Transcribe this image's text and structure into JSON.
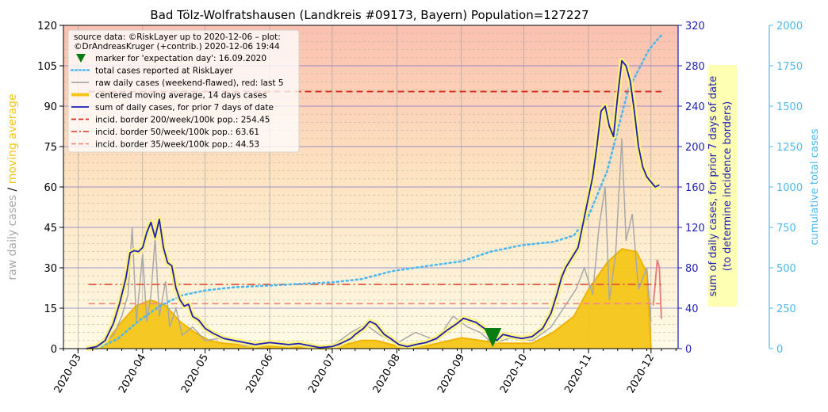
{
  "chart_data": {
    "type": "line",
    "title": "Bad Tölz-Wolfratshausen (Landkreis #09173, Bayern) Population=127227",
    "x_tick_labels": [
      "2020-03",
      "2020-04",
      "2020-05",
      "2020-06",
      "2020-07",
      "2020-08",
      "2020-09",
      "2020-10",
      "2020-11",
      "2020-12"
    ],
    "x_range": [
      "2020-02-23",
      "2020-12-14"
    ],
    "y_left": {
      "label_parts": [
        "raw daily cases",
        "/",
        "moving average"
      ],
      "range": [
        0,
        120
      ],
      "ticks": [
        "0",
        "15",
        "30",
        "45",
        "60",
        "75",
        "90",
        "105",
        "120"
      ]
    },
    "y_right1": {
      "label_lines": [
        "sum of daily cases, for prior 7 days of date",
        "(to determine incidence borders)"
      ],
      "range": [
        0,
        320
      ],
      "ticks": [
        "0",
        "40",
        "80",
        "120",
        "160",
        "200",
        "240",
        "280",
        "320"
      ]
    },
    "y_right2": {
      "label": "cumulative total cases",
      "range": [
        0,
        2000
      ],
      "ticks": [
        "0",
        "250",
        "500",
        "750",
        "1000",
        "1250",
        "1500",
        "1750",
        "2000"
      ]
    },
    "grid": true,
    "legend_position": "top-left",
    "legend": [
      {
        "kind": "text",
        "text": "source data: ©RiskLayer up to 2020-12-06 – plot:"
      },
      {
        "kind": "text",
        "text": "©DrAndreasKruger (+contrib.) 2020-12-06 19:44"
      },
      {
        "kind": "marker",
        "color": "#0a7d12",
        "text": "marker for 'expectation day': 16.09.2020"
      },
      {
        "kind": "dotted",
        "color": "#4db8f0",
        "text": "total cases reported at RiskLayer"
      },
      {
        "kind": "line",
        "color": "#a8a8a8",
        "text": "raw daily cases (weekend-flawed), red: last 5"
      },
      {
        "kind": "thick",
        "color": "#f5c518",
        "text": "centered moving average, 14 days cases"
      },
      {
        "kind": "line",
        "color": "#1f1fb4",
        "text": "sum of daily cases, for prior 7 days of date"
      },
      {
        "kind": "dashed",
        "color": "#d62d20",
        "text": "incid. border 200/week/100k pop.: 254.45"
      },
      {
        "kind": "dashdot",
        "color": "#e0523a",
        "text": "incid. border 50/week/100k pop.: 63.61"
      },
      {
        "kind": "dashed",
        "color": "#f08a80",
        "text": "incid. border 35/week/100k pop.: 44.53"
      }
    ],
    "expectation_day": "2020-09-16",
    "incidence_borders": [
      {
        "name": "200/week/100k",
        "value": 254.45,
        "color": "#d62d20",
        "from": "2020-03-06",
        "to": "2020-12-06"
      },
      {
        "name": "50/week/100k",
        "value": 63.61,
        "color": "#e0523a",
        "from": "2020-03-06",
        "to": "2020-12-06"
      },
      {
        "name": "35/week/100k",
        "value": 44.53,
        "color": "#f08a80",
        "from": "2020-03-06",
        "to": "2020-12-06"
      }
    ],
    "series": [
      {
        "name": "sum of daily cases, for prior 7 days of date",
        "axis": "y_right1",
        "color": "#1f1fb4",
        "points": [
          [
            "2020-03-05",
            0
          ],
          [
            "2020-03-10",
            2
          ],
          [
            "2020-03-14",
            8
          ],
          [
            "2020-03-18",
            25
          ],
          [
            "2020-03-21",
            45
          ],
          [
            "2020-03-24",
            70
          ],
          [
            "2020-03-26",
            95
          ],
          [
            "2020-03-28",
            97
          ],
          [
            "2020-03-30",
            96
          ],
          [
            "2020-04-01",
            100
          ],
          [
            "2020-04-03",
            115
          ],
          [
            "2020-04-05",
            125
          ],
          [
            "2020-04-07",
            110
          ],
          [
            "2020-04-09",
            128
          ],
          [
            "2020-04-11",
            100
          ],
          [
            "2020-04-13",
            85
          ],
          [
            "2020-04-15",
            82
          ],
          [
            "2020-04-17",
            60
          ],
          [
            "2020-04-19",
            48
          ],
          [
            "2020-04-21",
            42
          ],
          [
            "2020-04-23",
            44
          ],
          [
            "2020-04-25",
            32
          ],
          [
            "2020-04-28",
            28
          ],
          [
            "2020-05-01",
            20
          ],
          [
            "2020-05-05",
            15
          ],
          [
            "2020-05-10",
            10
          ],
          [
            "2020-05-15",
            8
          ],
          [
            "2020-05-20",
            6
          ],
          [
            "2020-05-25",
            4
          ],
          [
            "2020-06-01",
            6
          ],
          [
            "2020-06-10",
            4
          ],
          [
            "2020-06-15",
            5
          ],
          [
            "2020-06-20",
            3
          ],
          [
            "2020-06-25",
            1
          ],
          [
            "2020-07-01",
            2
          ],
          [
            "2020-07-05",
            5
          ],
          [
            "2020-07-10",
            10
          ],
          [
            "2020-07-12",
            14
          ],
          [
            "2020-07-16",
            20
          ],
          [
            "2020-07-19",
            27
          ],
          [
            "2020-07-22",
            24
          ],
          [
            "2020-07-26",
            14
          ],
          [
            "2020-07-29",
            10
          ],
          [
            "2020-08-02",
            4
          ],
          [
            "2020-08-06",
            2
          ],
          [
            "2020-08-10",
            4
          ],
          [
            "2020-08-15",
            6
          ],
          [
            "2020-08-20",
            10
          ],
          [
            "2020-08-25",
            18
          ],
          [
            "2020-08-30",
            25
          ],
          [
            "2020-09-02",
            30
          ],
          [
            "2020-09-05",
            28
          ],
          [
            "2020-09-08",
            26
          ],
          [
            "2020-09-12",
            20
          ],
          [
            "2020-09-16",
            12
          ],
          [
            "2020-09-18",
            8
          ],
          [
            "2020-09-21",
            14
          ],
          [
            "2020-09-25",
            12
          ],
          [
            "2020-09-30",
            10
          ],
          [
            "2020-10-05",
            12
          ],
          [
            "2020-10-10",
            20
          ],
          [
            "2020-10-14",
            35
          ],
          [
            "2020-10-17",
            55
          ],
          [
            "2020-10-19",
            70
          ],
          [
            "2020-10-21",
            80
          ],
          [
            "2020-10-24",
            90
          ],
          [
            "2020-10-27",
            100
          ],
          [
            "2020-10-29",
            120
          ],
          [
            "2020-11-01",
            150
          ],
          [
            "2020-11-03",
            170
          ],
          [
            "2020-11-05",
            200
          ],
          [
            "2020-11-07",
            235
          ],
          [
            "2020-11-09",
            240
          ],
          [
            "2020-11-11",
            220
          ],
          [
            "2020-11-13",
            210
          ],
          [
            "2020-11-15",
            250
          ],
          [
            "2020-11-17",
            285
          ],
          [
            "2020-11-19",
            280
          ],
          [
            "2020-11-21",
            265
          ],
          [
            "2020-11-23",
            235
          ],
          [
            "2020-11-25",
            200
          ],
          [
            "2020-11-27",
            180
          ],
          [
            "2020-11-29",
            170
          ],
          [
            "2020-12-01",
            165
          ],
          [
            "2020-12-03",
            160
          ],
          [
            "2020-12-05",
            162
          ]
        ]
      },
      {
        "name": "total cases reported at RiskLayer",
        "axis": "y_right2",
        "color": "#4db8f0",
        "points": [
          [
            "2020-03-10",
            0
          ],
          [
            "2020-03-20",
            60
          ],
          [
            "2020-03-30",
            170
          ],
          [
            "2020-04-10",
            270
          ],
          [
            "2020-04-20",
            330
          ],
          [
            "2020-05-01",
            360
          ],
          [
            "2020-05-15",
            380
          ],
          [
            "2020-06-01",
            390
          ],
          [
            "2020-06-15",
            400
          ],
          [
            "2020-07-01",
            410
          ],
          [
            "2020-07-15",
            430
          ],
          [
            "2020-07-30",
            480
          ],
          [
            "2020-08-15",
            510
          ],
          [
            "2020-09-01",
            540
          ],
          [
            "2020-09-15",
            600
          ],
          [
            "2020-09-30",
            640
          ],
          [
            "2020-10-15",
            660
          ],
          [
            "2020-10-25",
            700
          ],
          [
            "2020-11-01",
            820
          ],
          [
            "2020-11-10",
            1100
          ],
          [
            "2020-11-20",
            1600
          ],
          [
            "2020-11-30",
            1850
          ],
          [
            "2020-12-06",
            1940
          ]
        ]
      },
      {
        "name": "centered moving average, 14 days cases",
        "axis": "y_left",
        "color": "#f5c518",
        "points": [
          [
            "2020-03-08",
            0
          ],
          [
            "2020-03-15",
            3
          ],
          [
            "2020-03-22",
            10
          ],
          [
            "2020-03-29",
            16
          ],
          [
            "2020-04-05",
            18
          ],
          [
            "2020-04-12",
            16
          ],
          [
            "2020-04-19",
            10
          ],
          [
            "2020-04-26",
            6
          ],
          [
            "2020-05-03",
            3
          ],
          [
            "2020-05-10",
            2
          ],
          [
            "2020-05-24",
            1
          ],
          [
            "2020-06-15",
            0.5
          ],
          [
            "2020-07-05",
            1
          ],
          [
            "2020-07-15",
            3
          ],
          [
            "2020-07-22",
            3
          ],
          [
            "2020-08-01",
            1
          ],
          [
            "2020-08-15",
            1
          ],
          [
            "2020-09-01",
            4
          ],
          [
            "2020-09-10",
            3
          ],
          [
            "2020-09-20",
            2
          ],
          [
            "2020-10-05",
            2
          ],
          [
            "2020-10-15",
            6
          ],
          [
            "2020-10-25",
            12
          ],
          [
            "2020-11-01",
            22
          ],
          [
            "2020-11-10",
            32
          ],
          [
            "2020-11-17",
            37
          ],
          [
            "2020-11-24",
            36
          ],
          [
            "2020-11-29",
            28
          ],
          [
            "2020-12-01",
            0
          ]
        ]
      },
      {
        "name": "raw daily cases (weekend-flawed), red: last 5",
        "axis": "y_left",
        "color": "#a8a8a8",
        "points": [
          [
            "2020-03-10",
            0
          ],
          [
            "2020-03-18",
            5
          ],
          [
            "2020-03-22",
            12
          ],
          [
            "2020-03-25",
            20
          ],
          [
            "2020-03-27",
            45
          ],
          [
            "2020-03-29",
            10
          ],
          [
            "2020-04-01",
            35
          ],
          [
            "2020-04-03",
            10
          ],
          [
            "2020-04-05",
            20
          ],
          [
            "2020-04-07",
            41
          ],
          [
            "2020-04-09",
            12
          ],
          [
            "2020-04-12",
            25
          ],
          [
            "2020-04-14",
            8
          ],
          [
            "2020-04-17",
            15
          ],
          [
            "2020-04-20",
            5
          ],
          [
            "2020-04-25",
            8
          ],
          [
            "2020-05-01",
            3
          ],
          [
            "2020-05-10",
            4
          ],
          [
            "2020-05-20",
            1
          ],
          [
            "2020-06-01",
            2
          ],
          [
            "2020-06-15",
            1
          ],
          [
            "2020-07-01",
            1
          ],
          [
            "2020-07-10",
            6
          ],
          [
            "2020-07-17",
            9
          ],
          [
            "2020-07-24",
            5
          ],
          [
            "2020-08-01",
            2
          ],
          [
            "2020-08-10",
            6
          ],
          [
            "2020-08-20",
            3
          ],
          [
            "2020-08-28",
            12
          ],
          [
            "2020-09-04",
            8
          ],
          [
            "2020-09-10",
            6
          ],
          [
            "2020-09-16",
            2
          ],
          [
            "2020-09-25",
            4
          ],
          [
            "2020-10-05",
            3
          ],
          [
            "2020-10-14",
            8
          ],
          [
            "2020-10-20",
            15
          ],
          [
            "2020-10-26",
            22
          ],
          [
            "2020-10-30",
            30
          ],
          [
            "2020-11-03",
            20
          ],
          [
            "2020-11-06",
            45
          ],
          [
            "2020-11-09",
            60
          ],
          [
            "2020-11-11",
            18
          ],
          [
            "2020-11-14",
            35
          ],
          [
            "2020-11-17",
            78
          ],
          [
            "2020-11-19",
            40
          ],
          [
            "2020-11-22",
            50
          ],
          [
            "2020-11-25",
            22
          ],
          [
            "2020-11-29",
            30
          ],
          [
            "2020-12-01",
            10
          ]
        ]
      },
      {
        "name": "raw daily cases last 5 (red)",
        "axis": "y_left",
        "color": "#e88080",
        "points": [
          [
            "2020-12-02",
            16
          ],
          [
            "2020-12-03",
            24
          ],
          [
            "2020-12-04",
            33
          ],
          [
            "2020-12-05",
            30
          ],
          [
            "2020-12-06",
            11
          ]
        ]
      }
    ]
  }
}
